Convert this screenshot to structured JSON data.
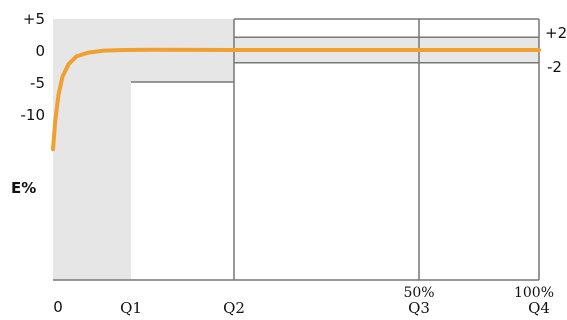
{
  "chart_data": {
    "type": "line",
    "ylabel": "E%",
    "y_ticks": [
      "+5",
      "0",
      "-5",
      "-10"
    ],
    "y_tick_values": [
      5,
      0,
      -5,
      -10
    ],
    "right_ticks": [
      "+2",
      "-2"
    ],
    "right_tick_values": [
      2,
      -2
    ],
    "x_ticks": [
      "0",
      "Q1",
      "Q2",
      "Q3",
      "Q4"
    ],
    "x_tick_values": [
      0,
      1,
      2,
      3,
      4
    ],
    "percent_labels": [
      {
        "at": "Q3",
        "label": "50%"
      },
      {
        "at": "Q4",
        "label": "100%"
      }
    ],
    "zones": [
      {
        "from": "0",
        "to": "Q1",
        "y_upper": 5,
        "y_lower": null
      },
      {
        "from": "Q1",
        "to": "Q2",
        "y_upper": 5,
        "y_lower": -5
      },
      {
        "from": "Q2",
        "to": "Q4",
        "y_upper": 2,
        "y_lower": -2
      }
    ],
    "series": [
      {
        "color": "#f0a030",
        "x": [
          0.0,
          0.03,
          0.07,
          0.12,
          0.2,
          0.3,
          0.45,
          0.65,
          0.9,
          1.2,
          1.6,
          2.0,
          3.0,
          4.0
        ],
        "y": [
          -15.5,
          -11.0,
          -7.0,
          -4.2,
          -2.2,
          -1.0,
          -0.4,
          -0.1,
          0.0,
          0.05,
          0.02,
          0.0,
          0.0,
          0.0
        ]
      }
    ],
    "grid": false,
    "colors": {
      "line": "#f0a030",
      "shade": "#e6e6e6",
      "border": "#777777"
    }
  }
}
